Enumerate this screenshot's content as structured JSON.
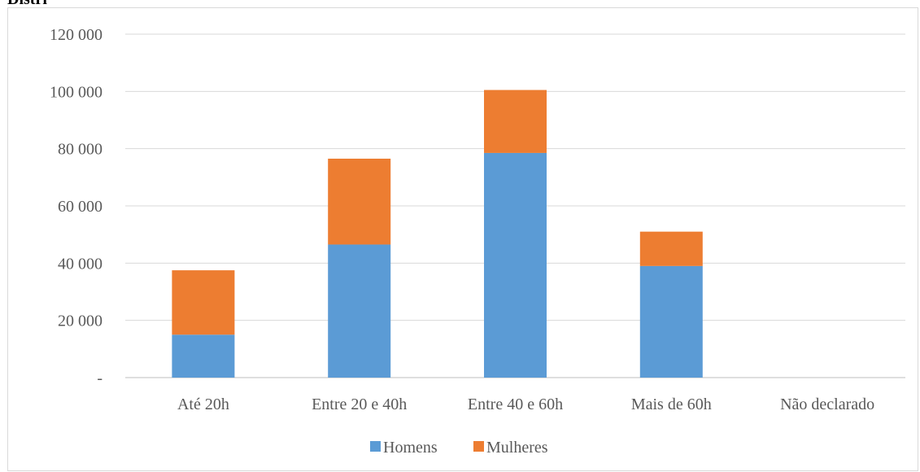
{
  "page_fragment": "Distribuição",
  "chart_data": {
    "type": "bar",
    "stacked": true,
    "categories": [
      "Até 20h",
      "Entre 20 e 40h",
      "Entre 40 e 60h",
      "Mais de 60h",
      "Não declarado"
    ],
    "series": [
      {
        "name": "Homens",
        "color": "#5b9bd5",
        "values": [
          15000,
          46500,
          78500,
          39000,
          0
        ]
      },
      {
        "name": "Mulheres",
        "color": "#ed7d31",
        "values": [
          22500,
          30000,
          22000,
          12000,
          0
        ]
      }
    ],
    "ylim": [
      0,
      120000
    ],
    "yticks": [
      0,
      20000,
      40000,
      60000,
      80000,
      100000,
      120000
    ],
    "ytick_labels": [
      "-",
      "20 000",
      "40 000",
      "60 000",
      "80 000",
      "100 000",
      "120 000"
    ],
    "grid": true,
    "legend_position": "bottom"
  }
}
